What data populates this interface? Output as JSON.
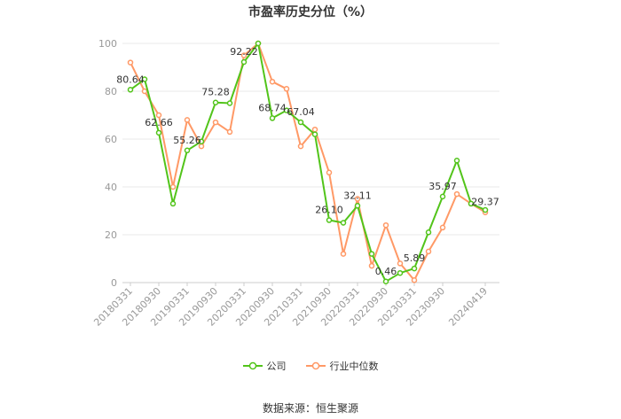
{
  "chart_data": {
    "type": "line",
    "title": "市盈率历史分位（%）",
    "ylim": [
      0,
      100
    ],
    "yticks": [
      "0",
      "20",
      "40",
      "60",
      "80",
      "100"
    ],
    "categories": [
      "20180331",
      "20180630",
      "20180930",
      "20181231",
      "20190331",
      "20190630",
      "20190930",
      "20191231",
      "20200331",
      "20200630",
      "20200930",
      "20201231",
      "20210331",
      "20210630",
      "20210930",
      "20211231",
      "20220331",
      "20220630",
      "20220930",
      "20221231",
      "20230331",
      "20230630",
      "20230930",
      "20231231",
      "20240331",
      "20240419"
    ],
    "xtick_labels": [
      "20180331",
      "20180930",
      "20190331",
      "20190930",
      "20200331",
      "20200930",
      "20210331",
      "20210930",
      "20220331",
      "20220930",
      "20230331",
      "20230930",
      "20240419"
    ],
    "series": [
      {
        "name": "公司",
        "color": "#52c41a",
        "values": [
          80.64,
          85,
          62.66,
          33,
          55.26,
          59,
          75.28,
          75,
          92.22,
          100,
          68.74,
          72,
          67.04,
          62,
          26.1,
          25,
          32.11,
          12,
          0.46,
          4,
          5.89,
          21,
          35.97,
          51,
          33,
          30.37
        ],
        "labels": {
          "0": "80.64",
          "2": "62.66",
          "4": "55.26",
          "6": "75.28",
          "8": "92.22",
          "10": "68.74",
          "12": "67.04",
          "14": "26.10",
          "16": "32.11",
          "18": "0.46",
          "20": "5.89",
          "22": "35.97"
        }
      },
      {
        "name": "行业中位数",
        "color": "#ff9966",
        "values": [
          92,
          80,
          70,
          40,
          68,
          57,
          67,
          63,
          95,
          100,
          84,
          81,
          57,
          64,
          46,
          12,
          35,
          7,
          24,
          8,
          1,
          13,
          23,
          37,
          33,
          29.37
        ],
        "labels": {
          "25": "29.37"
        }
      }
    ],
    "grid": true
  },
  "source": "数据来源：恒生聚源"
}
